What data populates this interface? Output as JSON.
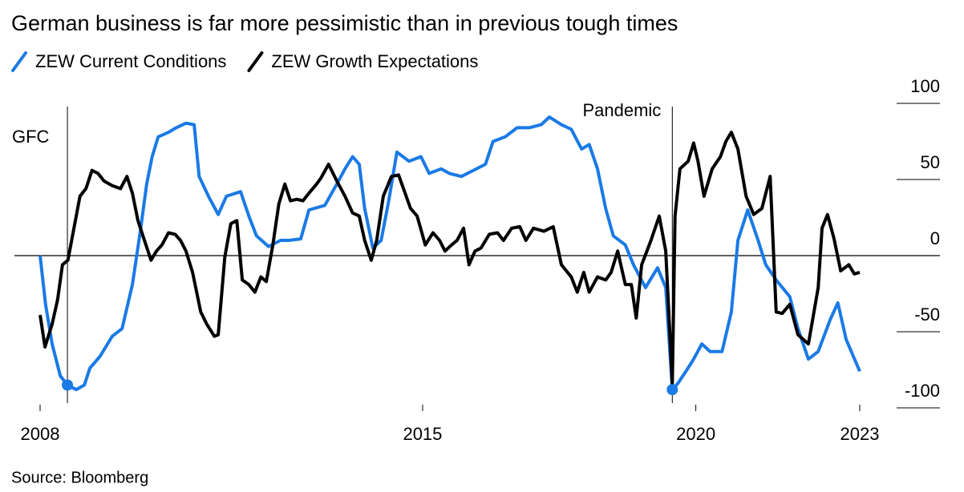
{
  "chart_data": {
    "type": "line",
    "title": "German business is far more pessimistic than in previous tough times",
    "source": "Source: Bloomberg",
    "xlim": [
      2008,
      2023
    ],
    "xticks": [
      2008,
      2015,
      2020,
      2023
    ],
    "ylim": [
      -100,
      100
    ],
    "yticks": [
      100,
      50,
      0,
      -50,
      -100
    ],
    "annotations": [
      {
        "text": "GFC",
        "x": 2008.5
      },
      {
        "text": "Pandemic",
        "x": 2019.57
      }
    ],
    "series": [
      {
        "name": "ZEW Current Conditions",
        "color": "#1a7ae6",
        "x": [
          2008.0,
          2008.1,
          2008.22,
          2008.37,
          2008.5,
          2008.66,
          2008.81,
          2008.91,
          2009.1,
          2009.32,
          2009.5,
          2009.69,
          2009.83,
          2009.95,
          2010.05,
          2010.16,
          2010.35,
          2010.49,
          2010.67,
          2010.82,
          2010.91,
          2011.08,
          2011.26,
          2011.41,
          2011.67,
          2011.82,
          2011.96,
          2012.18,
          2012.4,
          2012.55,
          2012.77,
          2012.92,
          2013.21,
          2013.43,
          2013.58,
          2013.72,
          2013.84,
          2013.94,
          2014.09,
          2014.24,
          2014.38,
          2014.53,
          2014.75,
          2014.97,
          2015.12,
          2015.34,
          2015.49,
          2015.71,
          2015.93,
          2016.15,
          2016.29,
          2016.51,
          2016.73,
          2016.95,
          2017.17,
          2017.32,
          2017.54,
          2017.72,
          2017.91,
          2018.05,
          2018.2,
          2018.35,
          2018.49,
          2018.71,
          2018.86,
          2019.08,
          2019.3,
          2019.45,
          2019.57,
          2019.67,
          2019.82,
          2019.96,
          2020.11,
          2020.26,
          2020.48,
          2020.65,
          2020.77,
          2020.95,
          2021.14,
          2021.28,
          2021.47,
          2021.72,
          2021.87,
          2022.06,
          2022.24,
          2022.46,
          2022.6,
          2022.75,
          2023.0
        ],
        "values": [
          0,
          -32,
          -58,
          -79,
          -85,
          -88,
          -85,
          -74,
          -66,
          -53,
          -48,
          -19,
          15,
          47,
          65,
          78,
          81,
          84,
          87,
          86,
          52,
          39,
          27,
          39,
          42,
          26,
          13,
          6,
          10,
          10,
          11,
          30,
          33,
          47,
          57,
          65,
          60,
          31,
          5,
          10,
          36,
          68,
          62,
          65,
          54,
          57,
          54,
          52,
          56,
          60,
          75,
          78,
          84,
          84,
          86,
          91,
          86,
          83,
          70,
          73,
          57,
          31,
          13,
          7,
          -6,
          -21,
          -8,
          -21,
          -88,
          -84,
          -76,
          -68,
          -58,
          -63,
          -63,
          -37,
          10,
          30,
          10,
          -6,
          -16,
          -27,
          -48,
          -68,
          -63,
          -42,
          -31,
          -55,
          -76
        ]
      },
      {
        "name": "ZEW Growth Expectations",
        "color": "#000000",
        "x": [
          2008.0,
          2008.09,
          2008.22,
          2008.32,
          2008.41,
          2008.51,
          2008.62,
          2008.73,
          2008.84,
          2008.95,
          2009.06,
          2009.17,
          2009.32,
          2009.47,
          2009.59,
          2009.69,
          2009.79,
          2009.91,
          2010.03,
          2010.13,
          2010.23,
          2010.35,
          2010.47,
          2010.57,
          2010.67,
          2010.79,
          2010.94,
          2011.05,
          2011.19,
          2011.26,
          2011.38,
          2011.49,
          2011.6,
          2011.7,
          2011.82,
          2011.93,
          2012.04,
          2012.14,
          2012.26,
          2012.37,
          2012.48,
          2012.58,
          2012.7,
          2012.81,
          2012.92,
          2013.06,
          2013.14,
          2013.28,
          2013.43,
          2013.58,
          2013.72,
          2013.84,
          2013.94,
          2014.06,
          2014.16,
          2014.28,
          2014.43,
          2014.56,
          2014.68,
          2014.78,
          2014.9,
          2015.05,
          2015.19,
          2015.31,
          2015.41,
          2015.53,
          2015.63,
          2015.75,
          2015.85,
          2015.96,
          2016.07,
          2016.22,
          2016.37,
          2016.48,
          2016.63,
          2016.78,
          2016.89,
          2017.03,
          2017.22,
          2017.39,
          2017.54,
          2017.72,
          2017.83,
          2017.95,
          2018.05,
          2018.2,
          2018.35,
          2018.45,
          2018.57,
          2018.71,
          2018.82,
          2018.91,
          2019.01,
          2019.18,
          2019.33,
          2019.45,
          2019.57,
          2019.62,
          2019.71,
          2019.86,
          2019.96,
          2020.04,
          2020.15,
          2020.3,
          2020.45,
          2020.55,
          2020.65,
          2020.77,
          2020.92,
          2021.06,
          2021.21,
          2021.36,
          2021.47,
          2021.58,
          2021.72,
          2021.87,
          2022.06,
          2022.24,
          2022.31,
          2022.41,
          2022.53,
          2022.65,
          2022.8,
          2022.9,
          2023.0
        ],
        "values": [
          -39,
          -60,
          -45,
          -29,
          -6,
          -3,
          18,
          39,
          44,
          56,
          54,
          49,
          46,
          44,
          52,
          41,
          23,
          10,
          -3,
          3,
          7,
          15,
          14,
          10,
          3,
          -11,
          -37,
          -45,
          -53,
          -52,
          -1,
          21,
          23,
          -16,
          -19,
          -24,
          -14,
          -17,
          7,
          34,
          47,
          36,
          37,
          36,
          41,
          47,
          51,
          60,
          49,
          39,
          28,
          26,
          10,
          -3,
          10,
          39,
          52,
          53,
          41,
          31,
          26,
          7,
          15,
          10,
          3,
          7,
          10,
          18,
          -6,
          3,
          5,
          14,
          15,
          10,
          18,
          19,
          10,
          18,
          16,
          19,
          -6,
          -14,
          -24,
          -11,
          -24,
          -14,
          -16,
          -11,
          3,
          -19,
          -19,
          -41,
          -6,
          10,
          26,
          3,
          -84,
          26,
          57,
          62,
          74,
          62,
          39,
          57,
          65,
          75,
          81,
          70,
          39,
          27,
          31,
          52,
          -37,
          -38,
          -32,
          -52,
          -58,
          -21,
          18,
          27,
          11,
          -10,
          -6,
          -12,
          -11
        ]
      }
    ]
  }
}
